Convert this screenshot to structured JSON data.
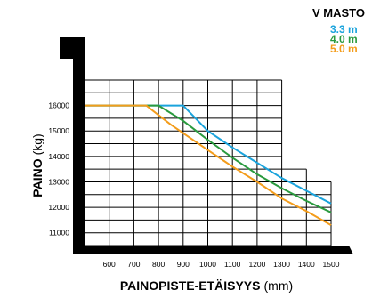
{
  "chart_data": {
    "type": "line",
    "legend_title": "V MASTO",
    "xlabel": "PAINOPISTE-ETÄISYYS",
    "xlabel_unit": "(mm)",
    "ylabel": "PAINO",
    "ylabel_unit": "(kg)",
    "x": [
      600,
      700,
      800,
      900,
      1000,
      1100,
      1200,
      1300,
      1400,
      1500
    ],
    "xlim": [
      500,
      1500
    ],
    "ylim": [
      10500,
      17000
    ],
    "yticks": [
      11000,
      12000,
      13000,
      14000,
      15000,
      16000
    ],
    "grid": true,
    "legend_position": "top-right",
    "series": [
      {
        "name": "3.3 m",
        "color": "#1aa3dc",
        "points": [
          [
            500,
            16000
          ],
          [
            900,
            16000
          ],
          [
            1000,
            15000
          ],
          [
            1100,
            14350
          ],
          [
            1200,
            13750
          ],
          [
            1300,
            13150
          ],
          [
            1400,
            12650
          ],
          [
            1500,
            12150
          ]
        ]
      },
      {
        "name": "4.0 m",
        "color": "#2a9a3e",
        "points": [
          [
            500,
            16000
          ],
          [
            800,
            16000
          ],
          [
            900,
            15400
          ],
          [
            1000,
            14650
          ],
          [
            1100,
            13950
          ],
          [
            1200,
            13300
          ],
          [
            1300,
            12750
          ],
          [
            1400,
            12250
          ],
          [
            1500,
            11800
          ]
        ]
      },
      {
        "name": "5.0 m",
        "color": "#f39c1b",
        "points": [
          [
            500,
            16000
          ],
          [
            750,
            16000
          ],
          [
            850,
            15250
          ],
          [
            1000,
            14250
          ],
          [
            1100,
            13600
          ],
          [
            1200,
            13000
          ],
          [
            1300,
            12350
          ],
          [
            1400,
            11850
          ],
          [
            1500,
            11300
          ]
        ]
      }
    ]
  }
}
